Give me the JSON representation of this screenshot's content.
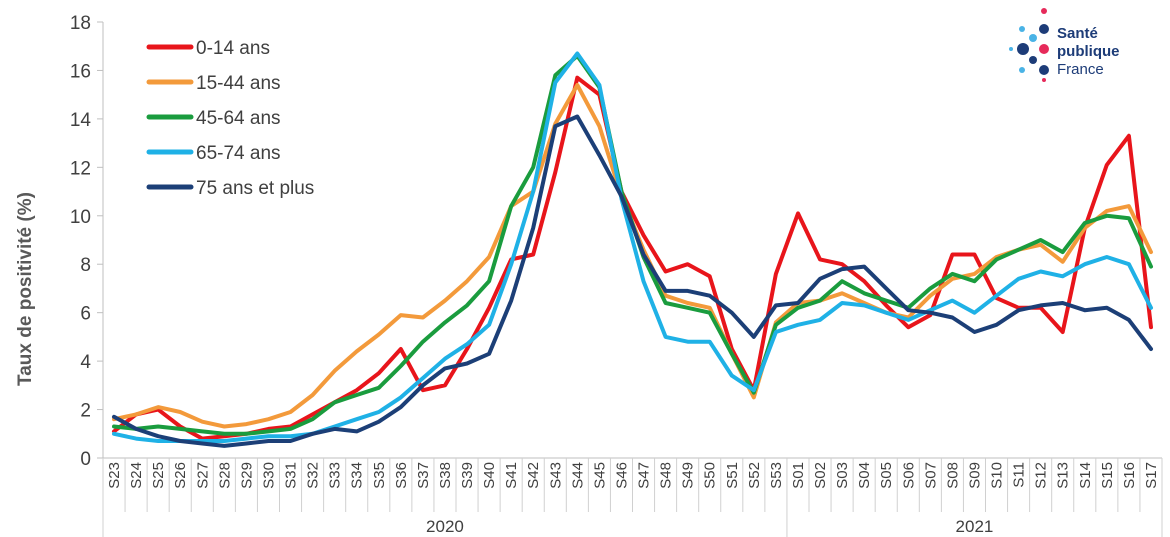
{
  "logo": {
    "line1": "Santé",
    "line2": "publique",
    "line3": "France"
  },
  "chart_data": {
    "type": "line",
    "ylabel": "Taux de positivité (%)",
    "xlabel": "",
    "ylim": [
      0,
      18
    ],
    "yticks": [
      0,
      2,
      4,
      6,
      8,
      10,
      12,
      14,
      16,
      18
    ],
    "grid": false,
    "legend_position": "top-left",
    "categories": [
      "S23",
      "S24",
      "S25",
      "S26",
      "S27",
      "S28",
      "S29",
      "S30",
      "S31",
      "S32",
      "S33",
      "S34",
      "S35",
      "S36",
      "S37",
      "S38",
      "S39",
      "S40",
      "S41",
      "S42",
      "S43",
      "S44",
      "S45",
      "S46",
      "S47",
      "S48",
      "S49",
      "S50",
      "S51",
      "S52",
      "S53",
      "S01",
      "S02",
      "S03",
      "S04",
      "S05",
      "S06",
      "S07",
      "S08",
      "S09",
      "S10",
      "S11",
      "S12",
      "S13",
      "S14",
      "S15",
      "S16",
      "S17"
    ],
    "year_groups": [
      {
        "label": "2020",
        "start": 0,
        "end": 30
      },
      {
        "label": "2021",
        "start": 31,
        "end": 47
      }
    ],
    "series": [
      {
        "name": "0-14 ans",
        "color": "#e8151b",
        "values": [
          1.1,
          1.8,
          2.0,
          1.3,
          0.8,
          0.9,
          1.0,
          1.2,
          1.3,
          1.8,
          2.3,
          2.8,
          3.5,
          4.5,
          2.8,
          3.0,
          4.5,
          6.2,
          8.2,
          8.4,
          11.8,
          15.7,
          15.0,
          11.0,
          9.2,
          7.7,
          8.0,
          7.5,
          4.5,
          2.8,
          7.6,
          10.1,
          8.2,
          8.0,
          7.3,
          6.3,
          5.4,
          5.9,
          8.4,
          8.4,
          6.6,
          6.2,
          6.2,
          5.2,
          9.5,
          12.1,
          13.3,
          5.4
        ]
      },
      {
        "name": "15-44 ans",
        "color": "#f39a3b",
        "values": [
          1.6,
          1.8,
          2.1,
          1.9,
          1.5,
          1.3,
          1.4,
          1.6,
          1.9,
          2.6,
          3.6,
          4.4,
          5.1,
          5.9,
          5.8,
          6.5,
          7.3,
          8.3,
          10.4,
          11.0,
          13.8,
          15.4,
          13.7,
          10.8,
          8.6,
          6.7,
          6.4,
          6.2,
          4.3,
          2.5,
          5.6,
          6.4,
          6.5,
          6.8,
          6.4,
          6.0,
          5.8,
          6.7,
          7.4,
          7.6,
          8.3,
          8.6,
          8.8,
          8.1,
          9.5,
          10.2,
          10.4,
          8.5
        ]
      },
      {
        "name": "45-64 ans",
        "color": "#1a9c3e",
        "values": [
          1.3,
          1.2,
          1.3,
          1.2,
          1.1,
          1.0,
          1.0,
          1.1,
          1.2,
          1.6,
          2.3,
          2.6,
          2.9,
          3.8,
          4.8,
          5.6,
          6.3,
          7.3,
          10.4,
          12.0,
          15.8,
          16.6,
          15.3,
          11.0,
          8.3,
          6.4,
          6.2,
          6.0,
          4.3,
          2.7,
          5.5,
          6.2,
          6.5,
          7.3,
          6.8,
          6.5,
          6.2,
          7.0,
          7.6,
          7.3,
          8.2,
          8.6,
          9.0,
          8.5,
          9.7,
          10.0,
          9.9,
          7.9
        ]
      },
      {
        "name": "65-74 ans",
        "color": "#1fb1e6",
        "values": [
          1.0,
          0.8,
          0.7,
          0.7,
          0.7,
          0.7,
          0.8,
          0.9,
          0.9,
          1.0,
          1.3,
          1.6,
          1.9,
          2.5,
          3.3,
          4.1,
          4.7,
          5.5,
          8.0,
          11.0,
          15.5,
          16.7,
          15.4,
          10.7,
          7.3,
          5.0,
          4.8,
          4.8,
          3.4,
          2.8,
          5.2,
          5.5,
          5.7,
          6.4,
          6.3,
          6.0,
          5.7,
          6.1,
          6.5,
          6.0,
          6.7,
          7.4,
          7.7,
          7.5,
          8.0,
          8.3,
          8.0,
          6.2
        ]
      },
      {
        "name": "75 ans et plus",
        "color": "#1c3f77",
        "values": [
          1.7,
          1.2,
          0.9,
          0.7,
          0.6,
          0.5,
          0.6,
          0.7,
          0.7,
          1.0,
          1.2,
          1.1,
          1.5,
          2.1,
          3.0,
          3.7,
          3.9,
          4.3,
          6.5,
          9.5,
          13.7,
          14.1,
          12.5,
          10.8,
          8.4,
          6.9,
          6.9,
          6.7,
          6.0,
          5.0,
          6.3,
          6.4,
          7.4,
          7.8,
          7.9,
          7.0,
          6.1,
          6.0,
          5.8,
          5.2,
          5.5,
          6.1,
          6.3,
          6.4,
          6.1,
          6.2,
          5.7,
          4.5
        ]
      }
    ]
  }
}
